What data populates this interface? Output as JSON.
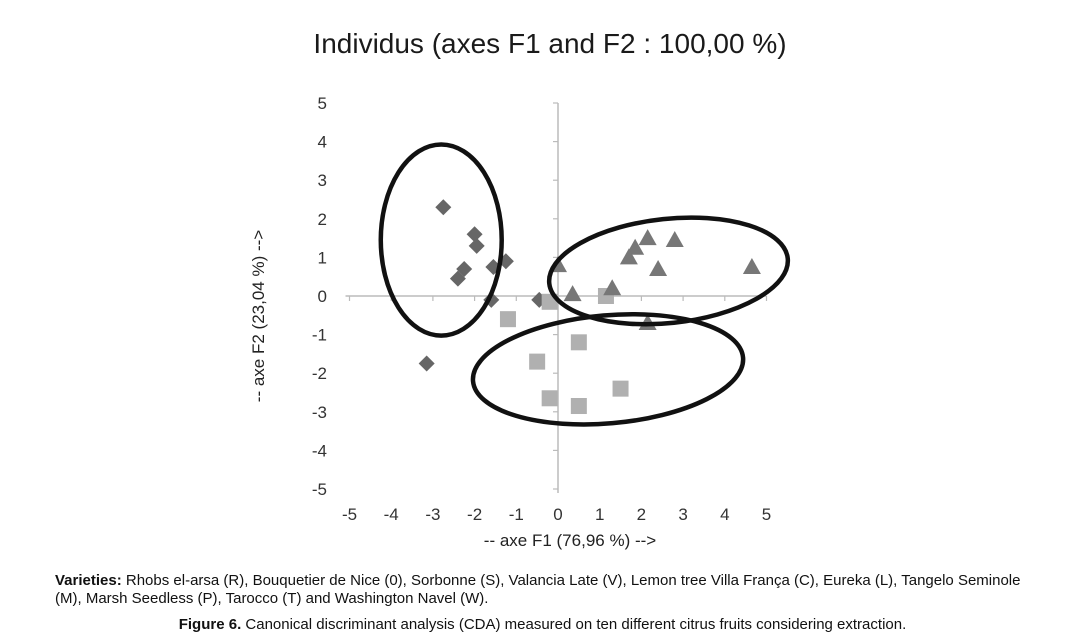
{
  "chart_data": {
    "type": "scatter",
    "title": "Individus (axes F1 and F2 : 100,00 %)",
    "xlabel": "-- axe F1 (76,96 %) -->",
    "ylabel": "-- axe F2 (23,04 %) -->",
    "xlim": [
      -5,
      5
    ],
    "ylim": [
      -5,
      5
    ],
    "xticks": [
      "-5",
      "-4",
      "-3",
      "-2",
      "-1",
      "0",
      "1",
      "2",
      "3",
      "4",
      "5"
    ],
    "yticks": [
      "5",
      "4",
      "3",
      "2",
      "1",
      "0",
      "-1",
      "-2",
      "-3",
      "-4",
      "-5"
    ],
    "grid": false,
    "series": [
      {
        "marker": "diamond",
        "color": "#666666",
        "points": [
          [
            -2.75,
            2.3
          ],
          [
            -2.0,
            1.6
          ],
          [
            -1.95,
            1.3
          ],
          [
            -2.25,
            0.7
          ],
          [
            -2.4,
            0.45
          ],
          [
            -1.55,
            0.75
          ],
          [
            -1.25,
            0.9
          ],
          [
            -1.6,
            -0.1
          ],
          [
            -0.45,
            -0.1
          ],
          [
            -3.15,
            -1.75
          ]
        ]
      },
      {
        "marker": "square",
        "color": "#b0b0b0",
        "points": [
          [
            -1.2,
            -0.6
          ],
          [
            -0.5,
            -1.7
          ],
          [
            -0.2,
            -0.15
          ],
          [
            1.15,
            0.0
          ],
          [
            0.5,
            -1.2
          ],
          [
            -0.2,
            -2.65
          ],
          [
            0.5,
            -2.85
          ],
          [
            1.5,
            -2.4
          ]
        ]
      },
      {
        "marker": "triangle",
        "color": "#777777",
        "points": [
          [
            0.35,
            0.05
          ],
          [
            1.3,
            0.2
          ],
          [
            2.15,
            1.5
          ],
          [
            2.8,
            1.45
          ],
          [
            1.85,
            1.25
          ],
          [
            1.7,
            1.0
          ],
          [
            2.4,
            0.7
          ],
          [
            4.65,
            0.75
          ],
          [
            2.15,
            -0.7
          ],
          [
            0.0,
            0.8
          ]
        ]
      }
    ],
    "ellipses": [
      {
        "cx": -2.8,
        "cy": 1.45,
        "rx": 2.9,
        "ry": 4.95,
        "angle": 0
      },
      {
        "cx": 2.65,
        "cy": 0.65,
        "rx": 5.75,
        "ry": 2.7,
        "angle": -6
      },
      {
        "cx": 1.2,
        "cy": -1.9,
        "rx": 6.5,
        "ry": 2.8,
        "angle": -5
      }
    ]
  },
  "caption": {
    "varieties_label": "Varieties:",
    "varieties_text": " Rhobs el-arsa (R), Bouquetier de Nice (0), Sorbonne (S), Valancia Late (V), Lemon tree Villa França (C), Eureka (L), Tangelo Seminole (M), Marsh Seedless (P), Tarocco (T) and Washington Navel (W).",
    "figure_label": "Figure 6.",
    "figure_text": " Canonical discriminant analysis (CDA) measured on ten different citrus fruits considering extraction."
  }
}
